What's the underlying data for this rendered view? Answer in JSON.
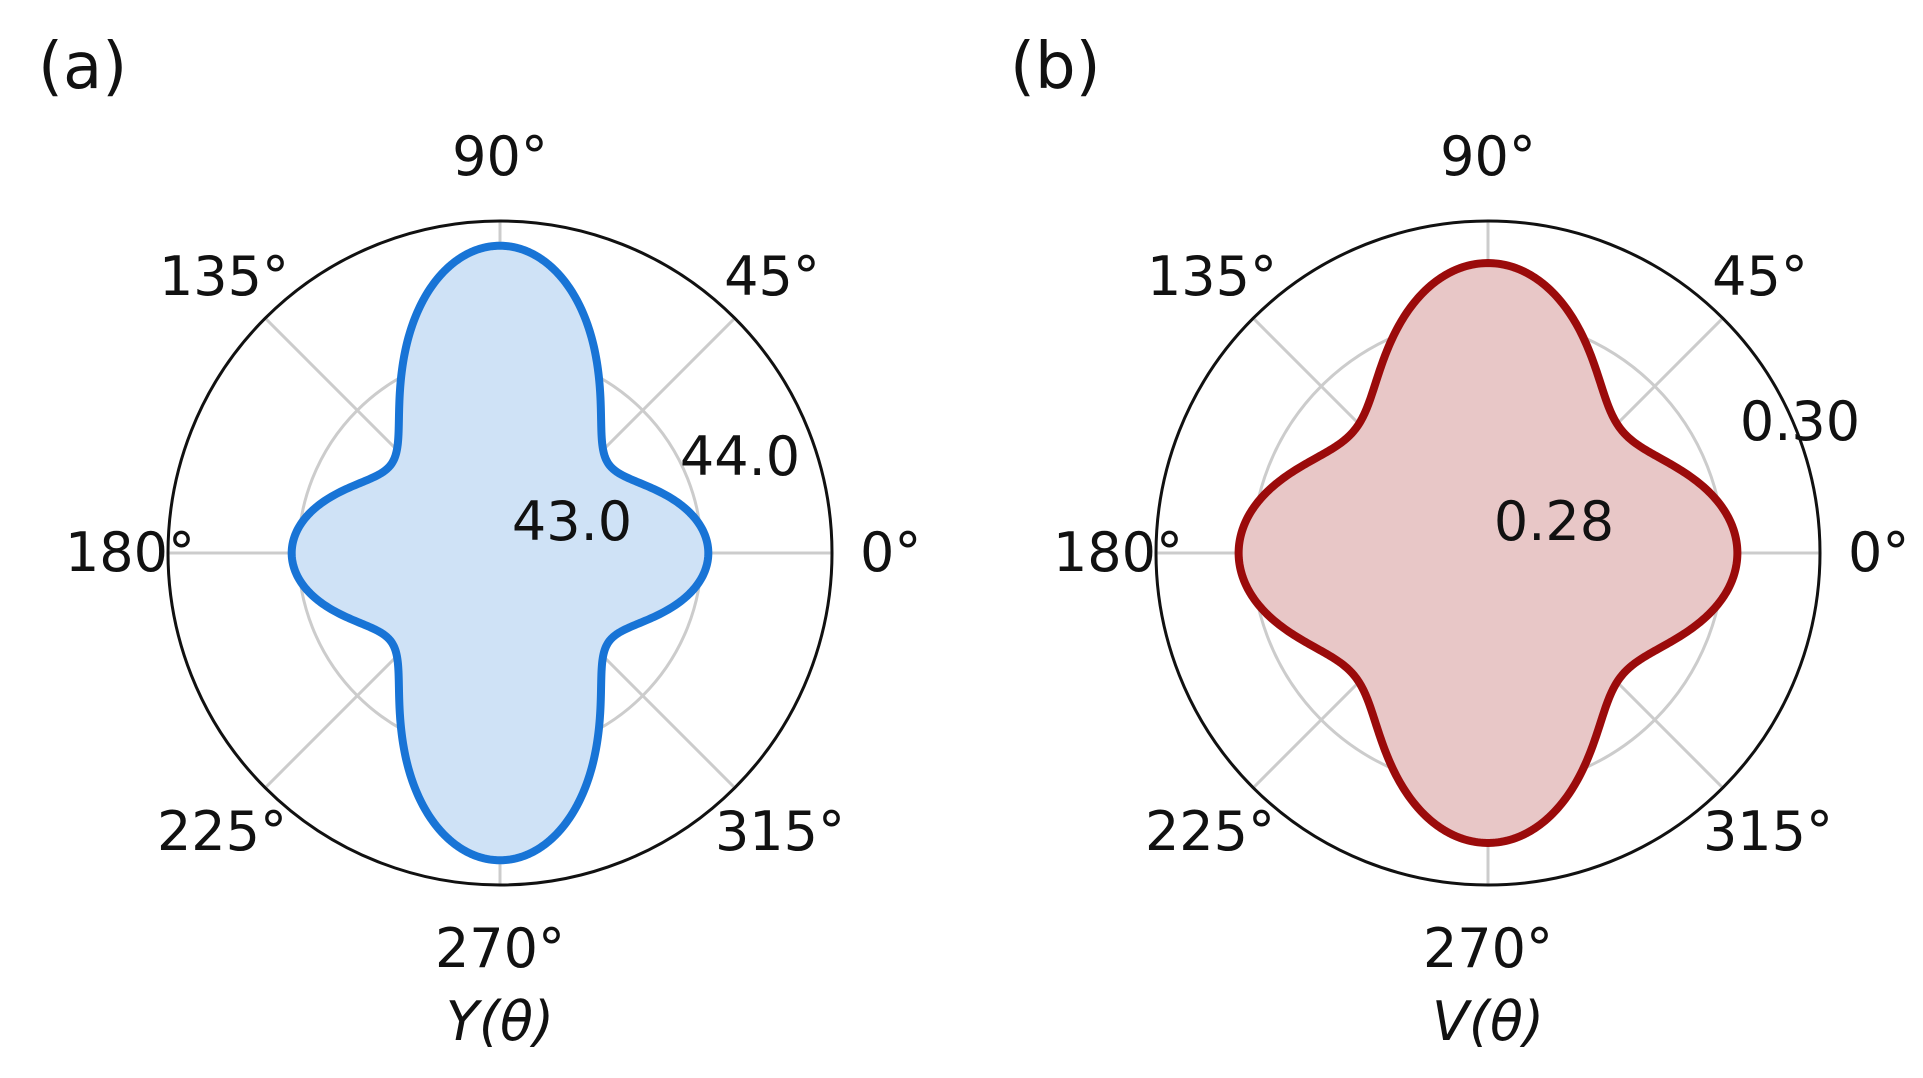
{
  "chart_data": [
    {
      "type": "polar",
      "panel_label": "(a)",
      "xlabel": "Y(θ)",
      "angle_ticks": [
        "0°",
        "45°",
        "90°",
        "135°",
        "180°",
        "225°",
        "270°",
        "315°"
      ],
      "radial_ticks": [
        {
          "value": 43.0,
          "label": "43.0"
        },
        {
          "value": 44.0,
          "label": "44.0"
        }
      ],
      "rlim": [
        42.45,
        45.0
      ],
      "grid": true,
      "color": "#1874d6",
      "fill_color": "#cfe2f6",
      "function": {
        "form": "r = a + b*cos(2θ) + c*cos(4θ)",
        "a": 44.0,
        "b": -0.38,
        "c": 0.43
      }
    },
    {
      "type": "polar",
      "panel_label": "(b)",
      "xlabel": "V(θ)",
      "angle_ticks": [
        "0°",
        "45°",
        "90°",
        "135°",
        "180°",
        "225°",
        "270°",
        "315°"
      ],
      "radial_ticks": [
        {
          "value": 0.28,
          "label": "0.28"
        },
        {
          "value": 0.3,
          "label": "0.30"
        }
      ],
      "rlim": [
        0.2686,
        0.3128
      ],
      "grid": true,
      "color": "#9b0b0b",
      "fill_color": "#e8c7c7",
      "function": {
        "form": "r = a + b*cos(2θ) + c*cos(4θ)",
        "a": 0.2987,
        "b": -0.0027,
        "c": 0.0058
      }
    }
  ]
}
